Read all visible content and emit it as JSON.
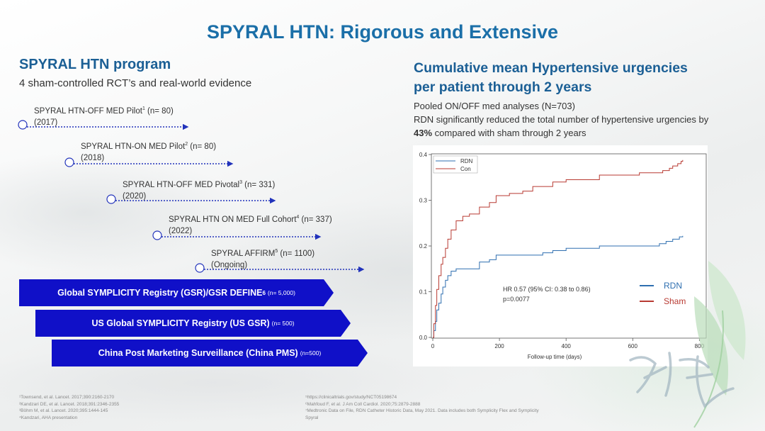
{
  "title": "SPYRAL HTN: Rigorous and Extensive",
  "left": {
    "heading": "SPYRAL HTN program",
    "subheading": "4 sham-controlled RCT’s and real-world evidence",
    "trials": [
      {
        "name": "SPYRAL HTN-OFF MED Pilot",
        "sup": "1",
        "n": " (n= 80)",
        "year": "(2017)"
      },
      {
        "name": "SPYRAL HTN-ON MED Pilot",
        "sup": "2",
        "n": " (n= 80)",
        "year": "(2018)"
      },
      {
        "name": "SPYRAL HTN-OFF MED Pivotal",
        "sup": "3",
        "n": " (n= 331)",
        "year": "(2020)"
      },
      {
        "name": "SPYRAL HTN ON MED Full Cohort",
        "sup": "4",
        "n": " (n= 337)",
        "year": "(2022)"
      },
      {
        "name": "SPYRAL AFFIRM",
        "sup": "5",
        "n": " (n= 1100)",
        "year": "(Ongoing)"
      }
    ],
    "registries": [
      {
        "label": "Global SYMPLICITY Registry (GSR)/GSR DEFINE",
        "sup": "6",
        "n": "(n= 5,000)"
      },
      {
        "label": "US Global SYMPLICITY Registry (US GSR)",
        "sup": "",
        "n": "(n= 500)"
      },
      {
        "label": "China Post Marketing Surveillance (China PMS)",
        "sup": "",
        "n": "(n=500)"
      }
    ]
  },
  "right": {
    "heading": "Cumulative mean Hypertensive urgencies per patient through 2 years",
    "line1": "Pooled ON/OFF med analyses (N=703)",
    "line2": "RDN significantly reduced the total number of hypertensive urgencies by ",
    "line2_bold": "43%",
    "line2_end": " compared with sham through 2 years"
  },
  "chart_data": {
    "type": "line",
    "xlabel": "Follow-up time (days)",
    "ylabel": "",
    "xlim": [
      0,
      800
    ],
    "ylim": [
      0,
      0.4
    ],
    "xticks": [
      "0",
      "200",
      "400",
      "600",
      "800"
    ],
    "yticks": [
      "0.0",
      "0.1",
      "0.2",
      "0.3",
      "0.4"
    ],
    "legend_inner": [
      "RDN",
      "Con"
    ],
    "legend_outer": [
      "RDN",
      "Sham"
    ],
    "annotation": [
      "HR 0.57 (95% CI: 0.38 to 0.86)",
      "p=0.0077"
    ],
    "colors": {
      "RDN": "#2f6fb0",
      "Sham": "#b83a32"
    },
    "series": [
      {
        "name": "RDN",
        "x": [
          0,
          3,
          8,
          12,
          18,
          25,
          30,
          38,
          45,
          55,
          70,
          90,
          110,
          140,
          170,
          190,
          210,
          300,
          330,
          360,
          400,
          500,
          580,
          630,
          680,
          700,
          720,
          740,
          750
        ],
        "y": [
          0,
          0.015,
          0.035,
          0.06,
          0.075,
          0.095,
          0.11,
          0.125,
          0.135,
          0.145,
          0.15,
          0.15,
          0.15,
          0.165,
          0.17,
          0.18,
          0.18,
          0.18,
          0.185,
          0.19,
          0.195,
          0.2,
          0.2,
          0.2,
          0.205,
          0.21,
          0.215,
          0.22,
          0.222
        ]
      },
      {
        "name": "Sham",
        "x": [
          0,
          3,
          8,
          12,
          18,
          25,
          30,
          38,
          45,
          55,
          70,
          90,
          110,
          140,
          170,
          190,
          230,
          270,
          300,
          360,
          400,
          500,
          560,
          620,
          660,
          690,
          710,
          720,
          735,
          745,
          750
        ],
        "y": [
          0,
          0.03,
          0.07,
          0.105,
          0.135,
          0.16,
          0.175,
          0.195,
          0.215,
          0.235,
          0.255,
          0.265,
          0.27,
          0.285,
          0.295,
          0.31,
          0.315,
          0.32,
          0.33,
          0.34,
          0.345,
          0.355,
          0.355,
          0.36,
          0.36,
          0.365,
          0.37,
          0.375,
          0.38,
          0.385,
          0.388
        ]
      }
    ]
  },
  "footnotes": {
    "left": [
      "¹Townsend, et al. Lancet. 2017;390:2160-2170",
      "²Kandzari DE, et al. Lancet. 2018;391:2346-2355",
      "³Böhm M, et al. Lancet. 2020;395:1444-145",
      "⁴Kandzari, AHA presentation"
    ],
    "right": [
      "⁵https://clinicaltrials.gov/study/NCT05198674",
      "⁶Mahfoud F, et al. J Am Coll Cardiol. 2020;75:2879-2888",
      "⁷Medtronic Data on File, RDN Catheter Historic Data, May 2021. Data includes both Symplicity Flex and Symplicity",
      "Spyral"
    ]
  }
}
